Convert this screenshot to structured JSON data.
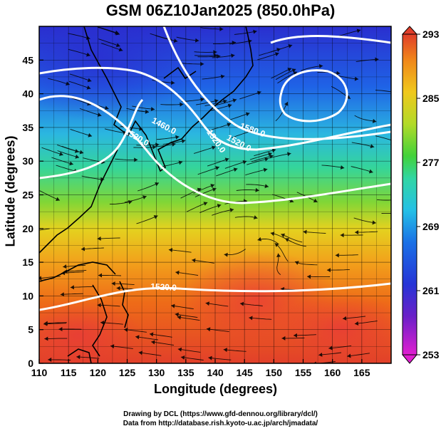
{
  "title": "GSM 06Z10Jan2025 (850.0hPa)",
  "xlabel": "Longitude (degrees)",
  "ylabel": "Latitude  (degrees)",
  "x_ticks": [
    "110",
    "115",
    "120",
    "125",
    "130",
    "135",
    "140",
    "145",
    "150",
    "155",
    "160",
    "165"
  ],
  "y_ticks": [
    "0",
    "5",
    "10",
    "15",
    "20",
    "25",
    "30",
    "35",
    "40",
    "45"
  ],
  "colorbar": {
    "min": 253,
    "max": 293,
    "labels": [
      "293",
      "285",
      "277",
      "269",
      "261",
      "253"
    ],
    "colors": [
      "#cc00cc",
      "#3a2fd8",
      "#1a55e0",
      "#2fa8e8",
      "#2bd7c4",
      "#3ccf3c",
      "#8ad62a",
      "#e7d21e",
      "#f2a21a",
      "#ee6a16",
      "#e04028"
    ]
  },
  "contours": [
    {
      "label": "1460.0"
    },
    {
      "label": "1520.0"
    },
    {
      "label": "1520.0"
    },
    {
      "label": "1580.0"
    },
    {
      "label": "1520.0"
    },
    {
      "label": "1520.0"
    }
  ],
  "credits": {
    "line1": "Drawing by DCL (https://www.gfd-dennou.org/library/dcl/)",
    "line2": "Data from http://database.rish.kyoto-u.ac.jp/arch/jmadata/"
  }
}
